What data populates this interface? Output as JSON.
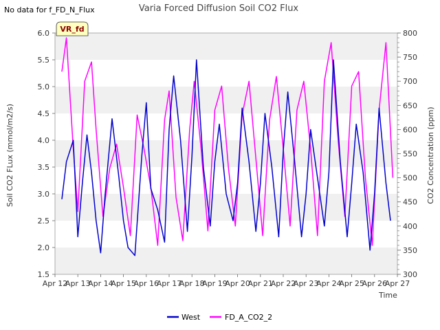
{
  "title": "Varia Forced Diffusion Soil CO2 Flux",
  "note": "No data for f_FD_N_Flux",
  "badge": "VR_fd",
  "chart_data": {
    "type": "line",
    "title": "Varia Forced Diffusion Soil CO2 Flux",
    "xlabel": "Time",
    "ylabel_left": "Soil CO2 FLux (mmol/m2/s)",
    "ylabel_right": "CO2 Concentration (ppm)",
    "x_ticks": [
      "Apr 12",
      "Apr 13",
      "Apr 14",
      "Apr 15",
      "Apr 16",
      "Apr 17",
      "Apr 18",
      "Apr 19",
      "Apr 20",
      "Apr 21",
      "Apr 22",
      "Apr 23",
      "Apr 24",
      "Apr 25",
      "Apr 26",
      "Apr 27"
    ],
    "y_left_ticks": [
      "1.5",
      "2.0",
      "2.5",
      "3.0",
      "3.5",
      "4.0",
      "4.5",
      "5.0",
      "5.5",
      "6.0"
    ],
    "y_right_ticks": [
      "300",
      "350",
      "400",
      "450",
      "500",
      "550",
      "600",
      "650",
      "700",
      "750",
      "800"
    ],
    "xlim_days": [
      0,
      15
    ],
    "ylim_left": [
      1.5,
      6.0
    ],
    "ylim_right": [
      300,
      800
    ],
    "grid": "horizontal bands",
    "legend_position": "bottom",
    "series": [
      {
        "name": "West",
        "axis": "left",
        "color": "#0000cc",
        "x_days": [
          0.3,
          0.5,
          0.8,
          1.0,
          1.2,
          1.4,
          1.6,
          1.8,
          2.0,
          2.2,
          2.5,
          2.8,
          3.0,
          3.2,
          3.5,
          3.8,
          4.0,
          4.2,
          4.5,
          4.8,
          5.0,
          5.2,
          5.5,
          5.8,
          6.0,
          6.2,
          6.5,
          6.8,
          7.0,
          7.2,
          7.5,
          7.8,
          8.0,
          8.2,
          8.5,
          8.8,
          9.0,
          9.2,
          9.5,
          9.8,
          10.0,
          10.2,
          10.5,
          10.8,
          11.0,
          11.2,
          11.5,
          11.8,
          12.0,
          12.2,
          12.5,
          12.8,
          13.0,
          13.2,
          13.5,
          13.8,
          14.0,
          14.2,
          14.5,
          14.7
        ],
        "values": [
          2.9,
          3.6,
          4.0,
          2.2,
          3.2,
          4.1,
          3.4,
          2.5,
          1.9,
          3.0,
          4.4,
          3.3,
          2.5,
          2.0,
          1.85,
          3.7,
          4.7,
          3.1,
          2.7,
          2.1,
          4.2,
          5.2,
          4.0,
          2.3,
          3.7,
          5.5,
          3.5,
          2.4,
          3.6,
          4.3,
          3.0,
          2.5,
          3.2,
          4.6,
          3.6,
          2.3,
          3.2,
          4.5,
          3.5,
          2.2,
          3.8,
          4.9,
          3.6,
          2.2,
          3.0,
          4.2,
          3.3,
          2.4,
          3.4,
          5.5,
          3.6,
          2.2,
          3.2,
          4.3,
          3.4,
          1.95,
          3.0,
          4.6,
          3.2,
          2.5
        ]
      },
      {
        "name": "FD_A_CO2_2",
        "axis": "right",
        "color": "#ff00ff",
        "x_days": [
          0.3,
          0.5,
          0.8,
          1.0,
          1.3,
          1.6,
          1.8,
          2.1,
          2.4,
          2.7,
          3.0,
          3.3,
          3.6,
          3.9,
          4.2,
          4.5,
          4.8,
          5.0,
          5.3,
          5.6,
          5.9,
          6.1,
          6.4,
          6.7,
          7.0,
          7.3,
          7.6,
          7.9,
          8.2,
          8.5,
          8.8,
          9.1,
          9.4,
          9.7,
          10.0,
          10.3,
          10.6,
          10.9,
          11.2,
          11.5,
          11.8,
          12.1,
          12.4,
          12.7,
          13.0,
          13.3,
          13.6,
          13.9,
          14.2,
          14.5,
          14.8
        ],
        "values": [
          720,
          790,
          560,
          430,
          700,
          740,
          600,
          420,
          520,
          570,
          480,
          380,
          630,
          560,
          480,
          360,
          620,
          680,
          460,
          370,
          600,
          700,
          560,
          390,
          640,
          690,
          520,
          400,
          630,
          700,
          540,
          380,
          620,
          710,
          560,
          400,
          640,
          700,
          560,
          380,
          700,
          780,
          580,
          420,
          690,
          720,
          500,
          360,
          640,
          780,
          500
        ]
      }
    ]
  }
}
